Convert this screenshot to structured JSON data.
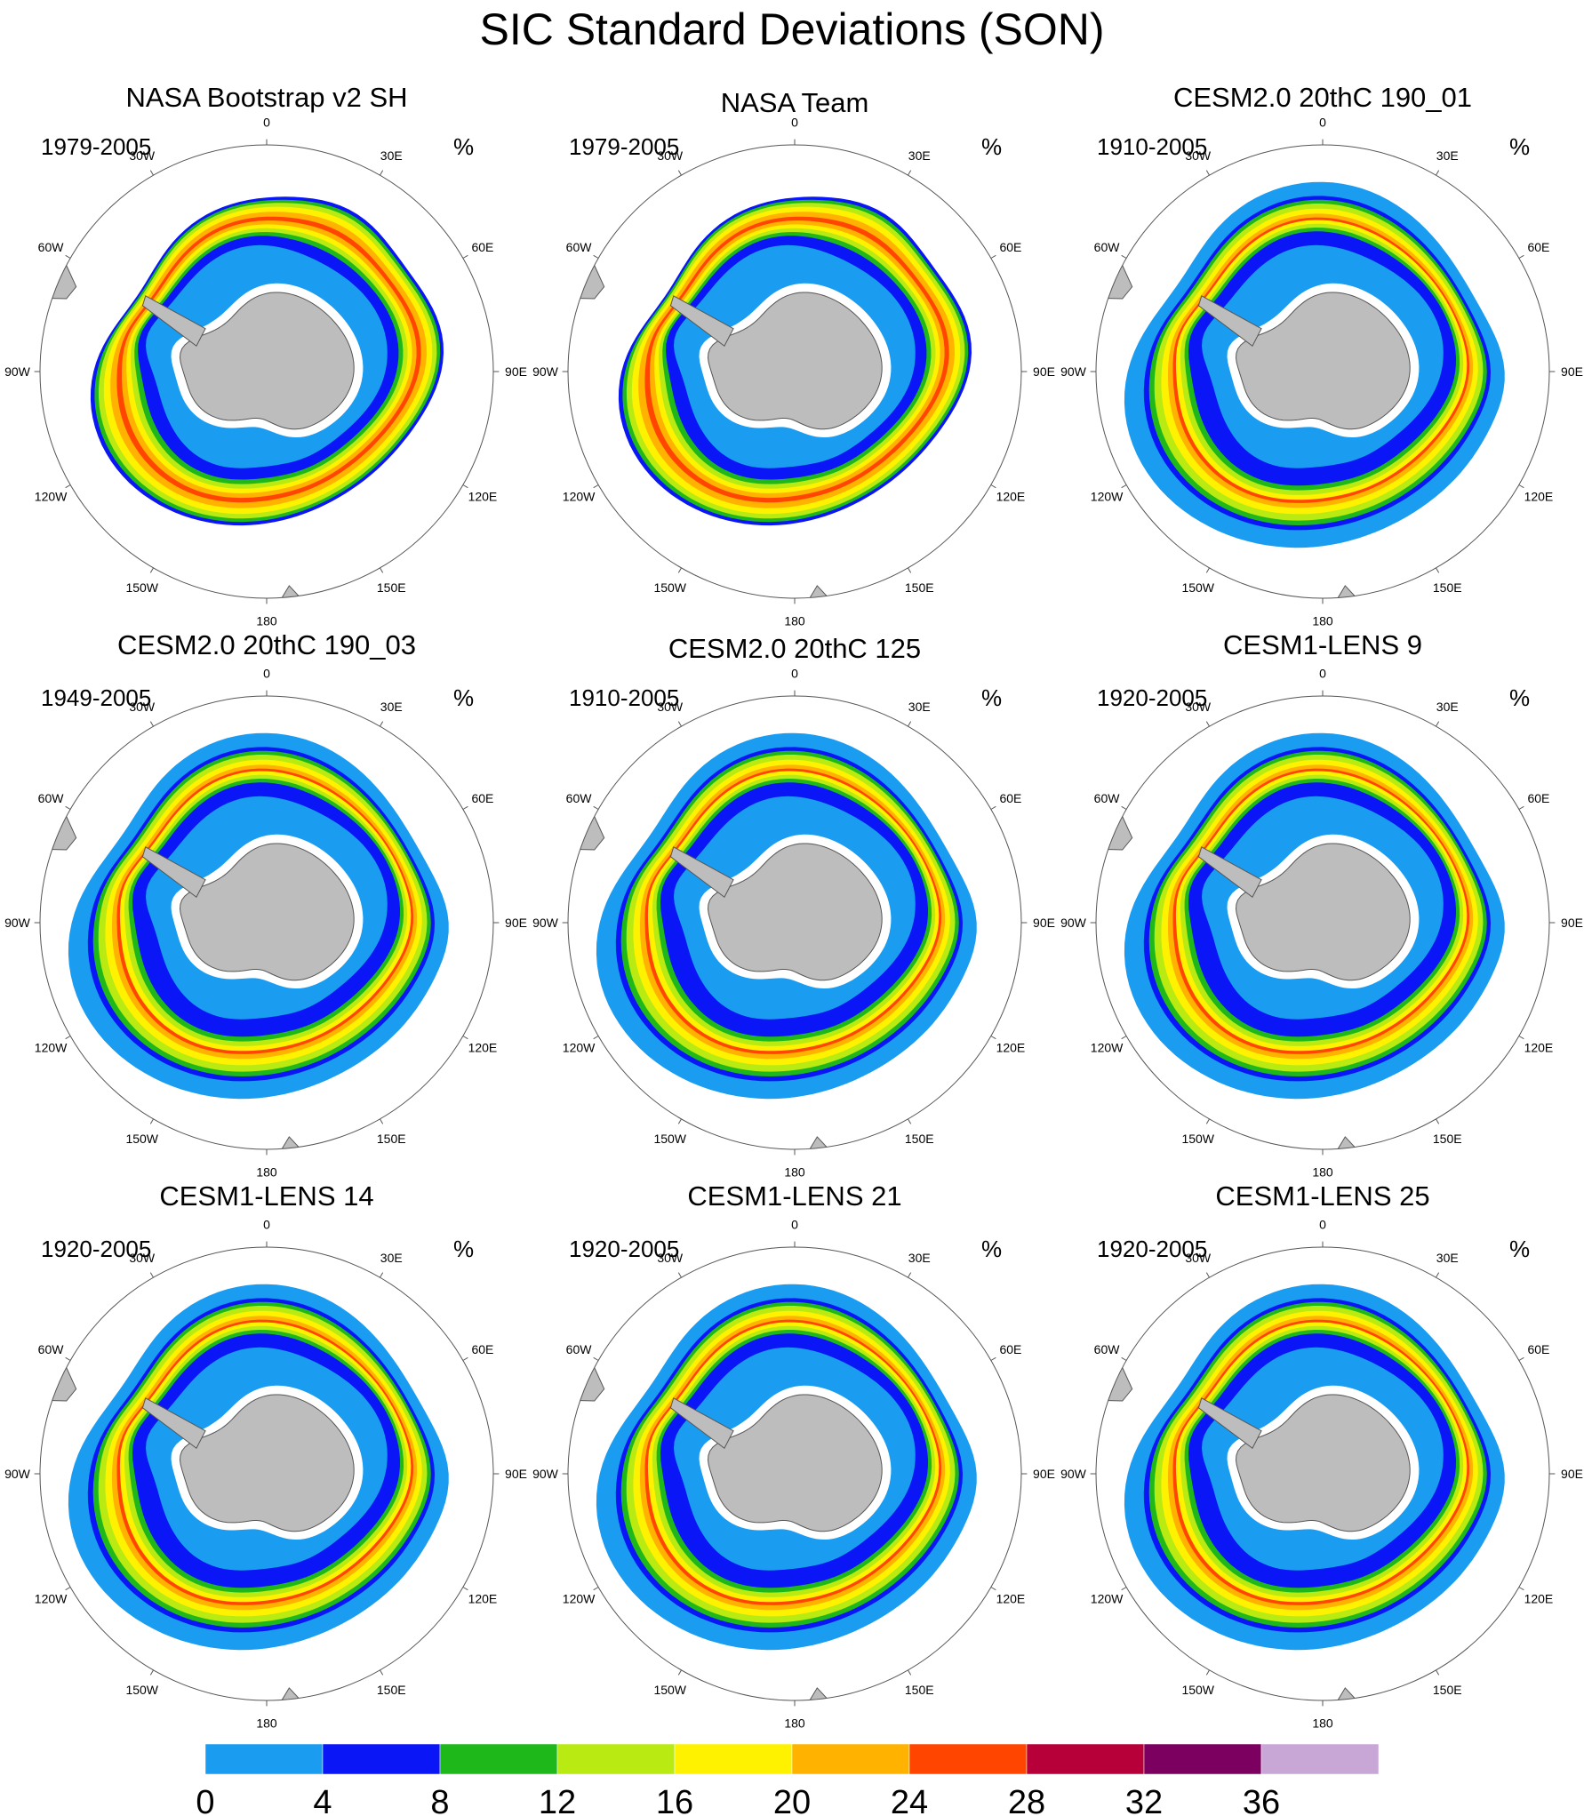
{
  "title": "SIC Standard Deviations (SON)",
  "unit": "%",
  "colors": {
    "land": "#bdbdbd",
    "coast": "#555555",
    "ice_shelf": "#ffffff",
    "grid": "#555555"
  },
  "longitude_labels": [
    {
      "lon": 0,
      "text": "0"
    },
    {
      "lon": 30,
      "text": "30E"
    },
    {
      "lon": 60,
      "text": "60E"
    },
    {
      "lon": 90,
      "text": "90E"
    },
    {
      "lon": 120,
      "text": "120E"
    },
    {
      "lon": 150,
      "text": "150E"
    },
    {
      "lon": 180,
      "text": "180"
    },
    {
      "lon": -150,
      "text": "150W"
    },
    {
      "lon": -120,
      "text": "120W"
    },
    {
      "lon": -90,
      "text": "90W"
    },
    {
      "lon": -60,
      "text": "60W"
    },
    {
      "lon": -30,
      "text": "30W"
    }
  ],
  "colorbar": {
    "levels": [
      0,
      4,
      8,
      12,
      16,
      20,
      24,
      28,
      32,
      36
    ],
    "colors": [
      "#1a9cf0",
      "#0a16f5",
      "#1fb81a",
      "#b9ea12",
      "#fff200",
      "#ffb300",
      "#ff4500",
      "#b7003a",
      "#7b005f",
      "#c8a7d7"
    ]
  },
  "panels": [
    {
      "title": "NASA Bootstrap v2 SH",
      "period": "1979-2005",
      "style": "obs-bootstrap"
    },
    {
      "title": "NASA Team",
      "period": "1979-2005",
      "style": "obs-team"
    },
    {
      "title": "CESM2.0 20thC 190_01",
      "period": "1910-2005",
      "style": "model"
    },
    {
      "title": "CESM2.0 20thC 190_03",
      "period": "1949-2005",
      "style": "model"
    },
    {
      "title": "CESM2.0 20thC 125",
      "period": "1910-2005",
      "style": "model"
    },
    {
      "title": "CESM1-LENS 9",
      "period": "1920-2005",
      "style": "model"
    },
    {
      "title": "CESM1-LENS 14",
      "period": "1920-2005",
      "style": "model"
    },
    {
      "title": "CESM1-LENS 21",
      "period": "1920-2005",
      "style": "model"
    },
    {
      "title": "CESM1-LENS 25",
      "period": "1920-2005",
      "style": "model"
    }
  ]
}
